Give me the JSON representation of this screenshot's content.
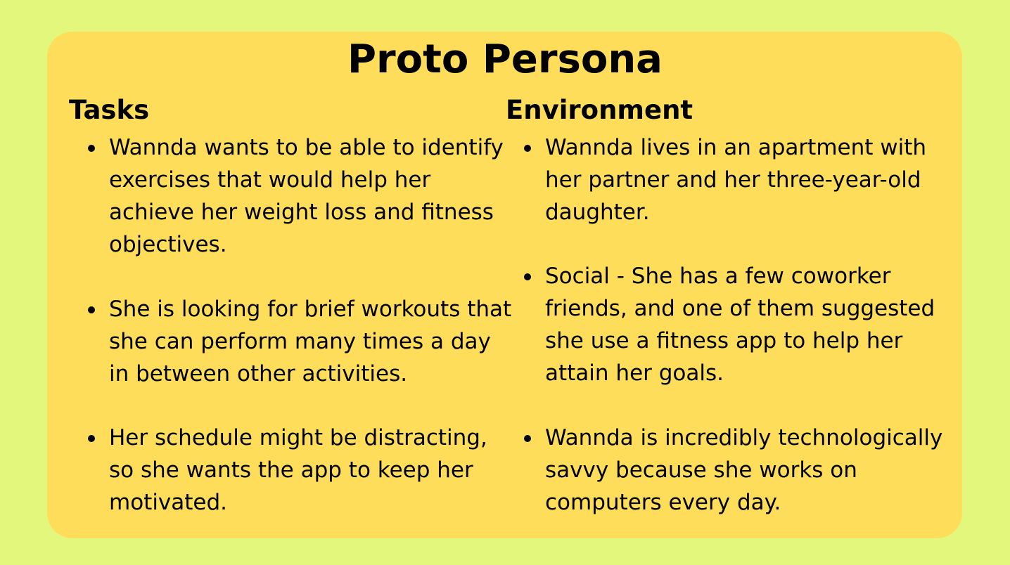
{
  "title": "Proto Persona",
  "colors": {
    "background": "#e2f77c",
    "card": "#fedd5a",
    "text": "#000000"
  },
  "tasks": {
    "heading": "Tasks",
    "items": [
      "Wannda wants to be able to identify exercises that would help her achieve her weight loss and fitness objectives.",
      "She is looking for brief workouts that she can perform many times a day in between other activities.",
      "Her schedule might be distracting, so she wants the app to keep her motivated."
    ]
  },
  "environment": {
    "heading": "Environment",
    "items": [
      "Wannda lives in an apartment with her partner and her three-year-old daughter.",
      "Social - She has a few coworker friends, and one of them suggested she use a fitness app to help her attain her goals.",
      "Wannda is incredibly technologically savvy because she works on computers every day."
    ]
  }
}
